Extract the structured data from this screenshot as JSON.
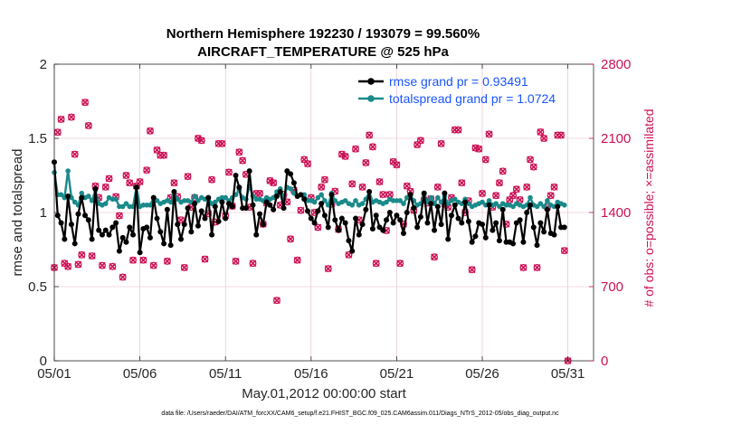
{
  "chart_data": {
    "type": "line",
    "title": "Northern Hemisphere 192230 / 193079 = 99.560%",
    "subtitle": "AIRCRAFT_TEMPERATURE @ 525 hPa",
    "xlabel": "May.01,2012 00:00:00 start",
    "ylabel_left": "rmse and totalspread",
    "ylabel_right": "# of obs: o=possible; ×=assimilated",
    "footnote": "data file: /Users/raeder/DAI/ATM_forcXX/CAM6_setup/f.e21.FHIST_BGC.f09_025.CAM6assim.011/Diags_NTrS_2012-05/obs_diag_output.nc",
    "x_tick_labels": [
      "05/01",
      "05/06",
      "05/11",
      "05/16",
      "05/21",
      "05/26",
      "05/31"
    ],
    "x_tick_days": [
      0,
      5,
      10,
      15,
      20,
      25,
      30
    ],
    "xlim_days": [
      0,
      31.5
    ],
    "ylim_left": [
      0,
      2
    ],
    "yticks_left": [
      "0",
      "0.5",
      "1",
      "1.5",
      "2"
    ],
    "ylim_right": [
      0,
      2800
    ],
    "yticks_right": [
      "0",
      "700",
      "1400",
      "2100",
      "2800"
    ],
    "grid": true,
    "legend_position": "top-right",
    "colors": {
      "rmse": "#000000",
      "spread": "#1a8a8a",
      "obs": "#cc1155",
      "grid": "#e7b8c8",
      "axis": "#262626",
      "legend_text": "#1a55ff"
    },
    "series": [
      {
        "name": "rmse",
        "legend": "rmse grand pr = 0.93491",
        "axis": "left",
        "values": [
          1.34,
          0.98,
          0.93,
          0.82,
          1.11,
          0.92,
          0.79,
          0.99,
          1.1,
          0.98,
          0.95,
          0.82,
          1.16,
          0.88,
          0.85,
          0.88,
          0.85,
          0.9,
          0.93,
          0.74,
          0.83,
          0.8,
          0.9,
          0.85,
          1.17,
          0.73,
          0.89,
          0.9,
          0.83,
          1.1,
          0.96,
          0.87,
          0.79,
          1.02,
          0.78,
          1.14,
          0.92,
          0.82,
          0.92,
          1.03,
          0.87,
          1.06,
          0.91,
          1.01,
          0.96,
          1.1,
          0.85,
          1.04,
          0.94,
          1.07,
          0.96,
          1.06,
          1.04,
          1.25,
          1.17,
          1.03,
          1.03,
          1.28,
          1.05,
          0.85,
          0.99,
          0.92,
          1.07,
          1.05,
          1.02,
          1.11,
          1.14,
          1.03,
          1.28,
          1.26,
          1.2,
          1.11,
          1.12,
          1.09,
          1.01,
          0.96,
          0.93,
          1.01,
          1.06,
          0.98,
          0.9,
          1.12,
          0.95,
          0.88,
          0.96,
          0.93,
          0.81,
          0.74,
          0.96,
          0.85,
          0.92,
          1.02,
          1.14,
          0.89,
          0.98,
          0.9,
          0.88,
          0.95,
          1.0,
          0.93,
          0.98,
          0.95,
          0.86,
          1.0,
          1.12,
          1.03,
          0.9,
          0.97,
          1.13,
          0.93,
          1.06,
          0.88,
          1.04,
          0.92,
          1.13,
          0.82,
          0.98,
          1.05,
          0.96,
          0.93,
          1.07,
          0.94,
          0.8,
          0.84,
          0.93,
          0.92,
          0.83,
          1.05,
          0.88,
          0.93,
          0.81,
          1.02,
          0.8,
          0.8,
          0.79,
          0.93,
          0.95,
          0.8,
          1.0,
          1.05,
          0.9,
          0.78,
          0.93,
          0.87,
          1.02,
          0.86,
          0.85,
          1.04,
          0.9,
          0.9
        ]
      },
      {
        "name": "totalspread",
        "legend": "totalspread grand pr = 1.0724",
        "axis": "left",
        "values": [
          1.27,
          1.12,
          1.12,
          1.1,
          1.28,
          1.1,
          1.07,
          1.05,
          1.13,
          1.1,
          1.11,
          1.08,
          1.15,
          1.06,
          1.05,
          1.06,
          1.1,
          1.09,
          1.09,
          1.04,
          1.04,
          1.06,
          1.04,
          1.04,
          1.17,
          1.04,
          1.05,
          1.05,
          1.05,
          1.1,
          1.08,
          1.06,
          1.07,
          1.08,
          1.07,
          1.12,
          1.09,
          1.07,
          1.08,
          1.08,
          1.07,
          1.11,
          1.08,
          1.1,
          1.09,
          1.1,
          1.06,
          1.07,
          1.09,
          1.1,
          1.1,
          1.08,
          1.1,
          1.12,
          1.15,
          1.1,
          1.09,
          1.18,
          1.11,
          1.09,
          1.09,
          1.08,
          1.1,
          1.09,
          1.1,
          1.14,
          1.16,
          1.1,
          1.17,
          1.16,
          1.13,
          1.11,
          1.12,
          1.12,
          1.08,
          1.08,
          1.07,
          1.1,
          1.12,
          1.08,
          1.05,
          1.13,
          1.08,
          1.06,
          1.07,
          1.08,
          1.06,
          1.05,
          1.08,
          1.05,
          1.06,
          1.09,
          1.14,
          1.07,
          1.08,
          1.07,
          1.06,
          1.07,
          1.09,
          1.08,
          1.08,
          1.08,
          1.06,
          1.1,
          1.12,
          1.08,
          1.05,
          1.06,
          1.12,
          1.07,
          1.1,
          1.06,
          1.1,
          1.07,
          1.11,
          1.06,
          1.08,
          1.09,
          1.07,
          1.06,
          1.09,
          1.06,
          1.04,
          1.05,
          1.06,
          1.07,
          1.05,
          1.08,
          1.05,
          1.06,
          1.04,
          1.06,
          1.05,
          1.05,
          1.04,
          1.06,
          1.05,
          1.04,
          1.05,
          1.1,
          1.05,
          1.04,
          1.06,
          1.04,
          1.08,
          1.05,
          1.04,
          1.07,
          1.06,
          1.05
        ]
      }
    ],
    "obs_counts": {
      "axis": "right",
      "values": [
        880,
        2158,
        2280,
        920,
        890,
        2300,
        1950,
        910,
        1000,
        2440,
        2220,
        990,
        1650,
        1540,
        900,
        1640,
        1720,
        890,
        1550,
        1370,
        790,
        1750,
        1680,
        950,
        1650,
        1690,
        950,
        1800,
        2170,
        900,
        1990,
        1940,
        1940,
        940,
        1540,
        1680,
        1550,
        1330,
        880,
        1740,
        1450,
        1540,
        2100,
        2080,
        960,
        1390,
        1710,
        1310,
        2050,
        2050,
        1370,
        1780,
        1460,
        940,
        1970,
        1890,
        1760,
        1450,
        920,
        1580,
        1580,
        1290,
        1490,
        1700,
        1680,
        570,
        1470,
        1570,
        1500,
        1150,
        1610,
        950,
        1420,
        1900,
        1860,
        1540,
        1400,
        1260,
        1640,
        1710,
        870,
        1480,
        1600,
        1240,
        1950,
        1930,
        1000,
        1670,
        2000,
        1330,
        1640,
        1870,
        2130,
        2020,
        920,
        1690,
        1570,
        1230,
        1570,
        1880,
        1850,
        920,
        1290,
        1650,
        1600,
        1420,
        2040,
        2080,
        1520,
        1490,
        1530,
        980,
        1640,
        2050,
        1480,
        1450,
        1540,
        2180,
        2180,
        1680,
        1400,
        1510,
        860,
        2010,
        2000,
        1580,
        1900,
        2140,
        1450,
        1560,
        1680,
        1790,
        1290,
        1520,
        1560,
        1620,
        1520,
        880,
        1640,
        1900,
        1830,
        880,
        2160,
        2100,
        1450,
        1560,
        1640,
        2130,
        2130,
        1040,
        0
      ]
    }
  }
}
